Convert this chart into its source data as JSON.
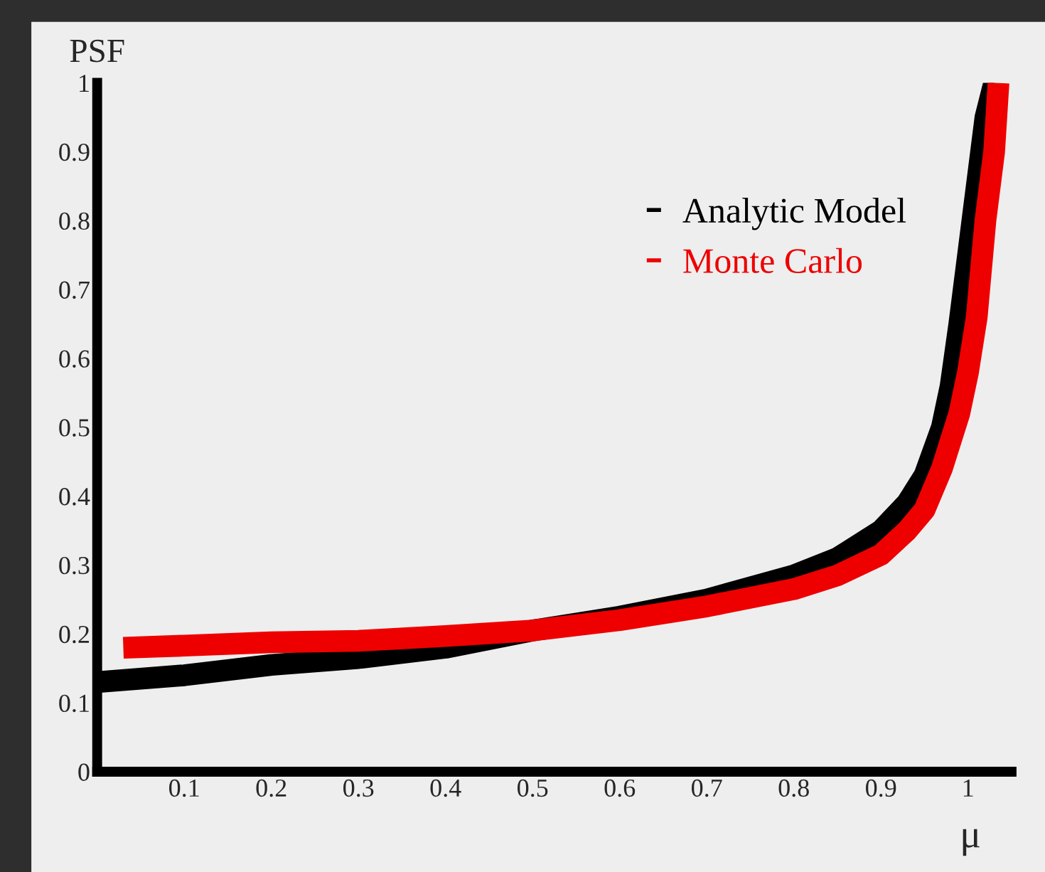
{
  "chart_data": {
    "type": "line",
    "xlabel": "μ",
    "ylabel": "PSF",
    "xlim": [
      0,
      1.05
    ],
    "ylim": [
      0,
      1
    ],
    "xticks": [
      0.1,
      0.2,
      0.3,
      0.4,
      0.5,
      0.6,
      0.7,
      0.8,
      0.9,
      1
    ],
    "yticks": [
      0,
      0.1,
      0.2,
      0.3,
      0.4,
      0.5,
      0.6,
      0.7,
      0.8,
      0.9,
      1
    ],
    "grid": false,
    "legend": "top right",
    "marker": "none",
    "line_style": "solid",
    "series": [
      {
        "name": "Analytic Model",
        "color": "#000000",
        "x": [
          0,
          0.1,
          0.2,
          0.3,
          0.4,
          0.5,
          0.6,
          0.7,
          0.8,
          0.85,
          0.9,
          0.93,
          0.95,
          0.97,
          0.98,
          0.99,
          1.0,
          1.01,
          1.02,
          1.03
        ],
        "values": [
          0.13,
          0.14,
          0.155,
          0.165,
          0.18,
          0.205,
          0.225,
          0.25,
          0.285,
          0.31,
          0.35,
          0.39,
          0.43,
          0.5,
          0.56,
          0.65,
          0.75,
          0.85,
          0.95,
          1.0
        ]
      },
      {
        "name": "Monte Carlo",
        "color": "#ee0000",
        "x": [
          0.03,
          0.1,
          0.2,
          0.3,
          0.4,
          0.5,
          0.6,
          0.7,
          0.8,
          0.85,
          0.9,
          0.93,
          0.95,
          0.97,
          0.99,
          1.0,
          1.01,
          1.02,
          1.03,
          1.035
        ],
        "values": [
          0.18,
          0.183,
          0.188,
          0.19,
          0.197,
          0.205,
          0.22,
          0.24,
          0.265,
          0.285,
          0.315,
          0.35,
          0.38,
          0.44,
          0.52,
          0.58,
          0.66,
          0.8,
          0.9,
          1.0
        ]
      }
    ]
  }
}
